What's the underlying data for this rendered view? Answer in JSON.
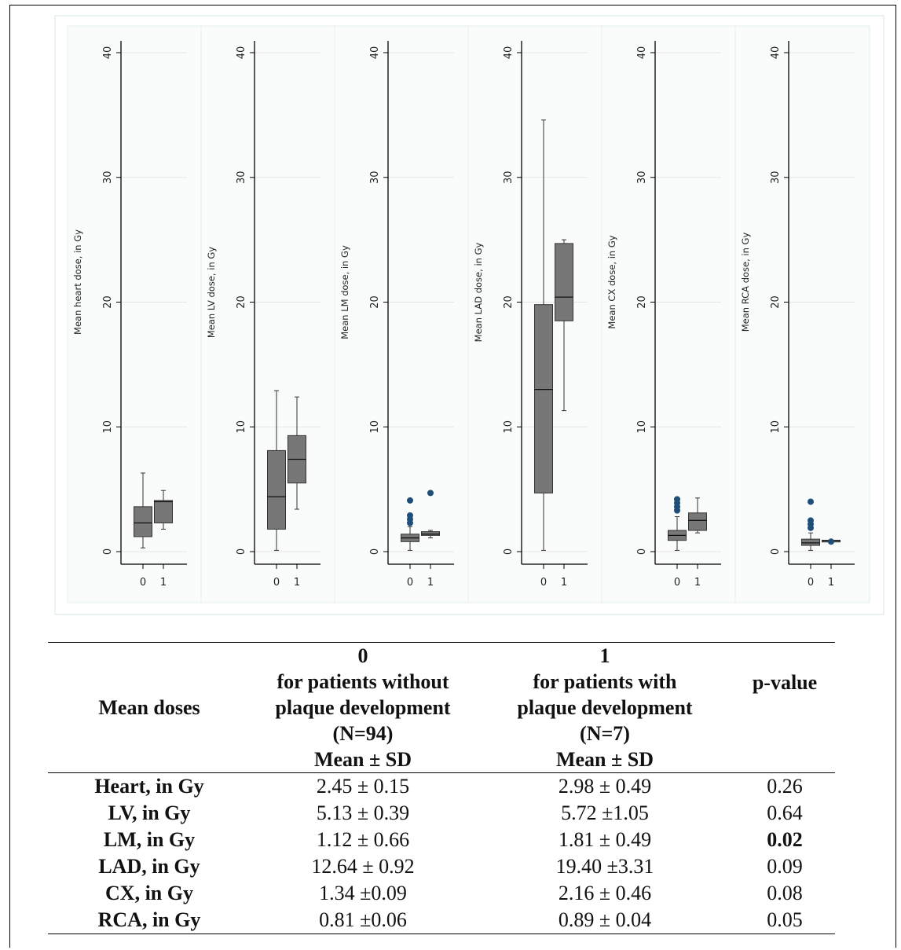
{
  "chart_data": {
    "type": "box",
    "panel_categories": [
      "0",
      "1"
    ],
    "ylim": [
      0,
      40
    ],
    "yticks": [
      0,
      10,
      20,
      30,
      40
    ],
    "grid": true,
    "colors": {
      "box": "#777777",
      "outlier": "#1f4e79",
      "axis": "#000000",
      "grid": "#e5e5e5",
      "plot_region": "#fafcfc"
    },
    "panels": [
      {
        "ylabel": "Mean heart dose, in Gy",
        "boxes": [
          {
            "category": "0",
            "whisker_low": 0.3,
            "q1": 1.2,
            "median": 2.3,
            "q3": 3.6,
            "whisker_high": 6.3,
            "outliers": []
          },
          {
            "category": "1",
            "whisker_low": 1.8,
            "q1": 2.3,
            "median": 4.0,
            "q3": 4.1,
            "whisker_high": 4.9,
            "outliers": []
          }
        ]
      },
      {
        "ylabel": "Mean LV dose, in Gy",
        "boxes": [
          {
            "category": "0",
            "whisker_low": 0.1,
            "q1": 1.8,
            "median": 4.4,
            "q3": 8.1,
            "whisker_high": 12.9,
            "outliers": []
          },
          {
            "category": "1",
            "whisker_low": 3.4,
            "q1": 5.5,
            "median": 7.4,
            "q3": 9.3,
            "whisker_high": 12.4,
            "outliers": []
          }
        ]
      },
      {
        "ylabel": "Mean LM dose, in Gy",
        "boxes": [
          {
            "category": "0",
            "whisker_low": 0.1,
            "q1": 0.8,
            "median": 1.1,
            "q3": 1.4,
            "whisker_high": 2.0,
            "outliers": [
              2.3,
              2.6,
              2.9,
              4.1
            ]
          },
          {
            "category": "1",
            "whisker_low": 1.1,
            "q1": 1.3,
            "median": 1.4,
            "q3": 1.6,
            "whisker_high": 1.7,
            "outliers": [
              4.7
            ]
          }
        ]
      },
      {
        "ylabel": "Mean LAD dose, in Gy",
        "boxes": [
          {
            "category": "0",
            "whisker_low": 0.1,
            "q1": 4.7,
            "median": 13.0,
            "q3": 19.8,
            "whisker_high": 34.6,
            "outliers": []
          },
          {
            "category": "1",
            "whisker_low": 11.3,
            "q1": 18.5,
            "median": 20.4,
            "q3": 24.7,
            "whisker_high": 25.0,
            "outliers": []
          }
        ]
      },
      {
        "ylabel": "Mean CX dose, in Gy",
        "boxes": [
          {
            "category": "0",
            "whisker_low": 0.1,
            "q1": 0.9,
            "median": 1.3,
            "q3": 1.7,
            "whisker_high": 2.8,
            "outliers": [
              3.3,
              3.6,
              3.9,
              4.2
            ]
          },
          {
            "category": "1",
            "whisker_low": 1.5,
            "q1": 1.7,
            "median": 2.5,
            "q3": 3.1,
            "whisker_high": 4.3,
            "outliers": []
          }
        ]
      },
      {
        "ylabel": "Mean RCA dose, in Gy",
        "boxes": [
          {
            "category": "0",
            "whisker_low": 0.1,
            "q1": 0.5,
            "median": 0.7,
            "q3": 1.0,
            "whisker_high": 1.5,
            "outliers": [
              1.9,
              2.2,
              2.5,
              4.0
            ]
          },
          {
            "category": "1",
            "whisker_low": 0.7,
            "q1": 0.8,
            "median": 0.9,
            "q3": 0.9,
            "whisker_high": 0.9,
            "outliers": [
              0.8
            ]
          }
        ]
      }
    ]
  },
  "table": {
    "header": {
      "col0": "Mean doses",
      "col1": [
        "0",
        "for patients without",
        "plaque development",
        "(N=94)",
        "Mean ± SD"
      ],
      "col2": [
        "1",
        "for patients with",
        "plaque development",
        "(N=7)",
        "Mean ± SD"
      ],
      "col3": "p-value"
    },
    "rows": [
      {
        "label": "Heart, in Gy",
        "group0": "2.45 ± 0.15",
        "group1": "2.98 ± 0.49",
        "p": "0.26",
        "significant": false
      },
      {
        "label": "LV, in Gy",
        "group0": "5.13 ± 0.39",
        "group1": "5.72 ±1.05",
        "p": "0.64",
        "significant": false
      },
      {
        "label": "LM, in Gy",
        "group0": "1.12 ± 0.66",
        "group1": "1.81 ± 0.49",
        "p": "0.02",
        "significant": true
      },
      {
        "label": "LAD, in Gy",
        "group0": "12.64 ± 0.92",
        "group1": "19.40 ±3.31",
        "p": "0.09",
        "significant": false
      },
      {
        "label": "CX, in Gy",
        "group0": "1.34 ±0.09",
        "group1": "2.16 ± 0.46",
        "p": "0.08",
        "significant": false
      },
      {
        "label": "RCA, in Gy",
        "group0": "0.81 ±0.06",
        "group1": "0.89 ± 0.04",
        "p": "0.05",
        "significant": false
      }
    ]
  }
}
